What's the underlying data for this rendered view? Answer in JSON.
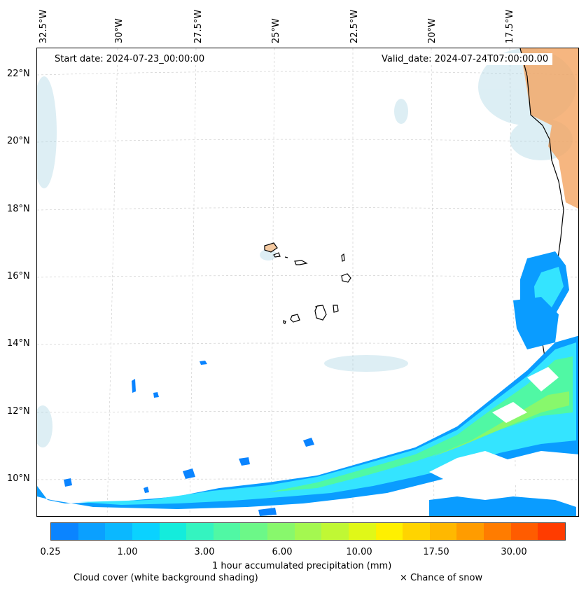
{
  "map": {
    "lon_labels": [
      "32.5°W",
      "30°W",
      "27.5°W",
      "25°W",
      "22.5°W",
      "20°W",
      "17.5°W"
    ],
    "lat_labels": [
      "22°N",
      "20°N",
      "18°N",
      "16°N",
      "14°N",
      "12°N",
      "10°N"
    ],
    "start_date": "Start date: 2024-07-23_00:00:00",
    "valid_date": "Valid_date: 2024-07-24T07:00:00.00",
    "land_color": "#f4a460",
    "cloud_color": "#9ecfe0"
  },
  "colorbar": {
    "colors": [
      "#0a84ff",
      "#0aa0ff",
      "#0ab8ff",
      "#0ad2ff",
      "#14ecdc",
      "#34f4c0",
      "#50f8a4",
      "#6cf888",
      "#88f86c",
      "#a4f850",
      "#c0f834",
      "#e0f818",
      "#fff000",
      "#ffd400",
      "#ffb800",
      "#ff9c00",
      "#ff7c00",
      "#ff5c00",
      "#ff3c00"
    ],
    "tick_labels": [
      "0.25",
      "1.00",
      "3.00",
      "6.00",
      "10.00",
      "17.50",
      "30.00"
    ],
    "label": "1 hour accumulated precipitation (mm)"
  },
  "legend": {
    "cloud_cover": "Cloud cover (white background shading)",
    "snow": "× Chance of snow"
  }
}
